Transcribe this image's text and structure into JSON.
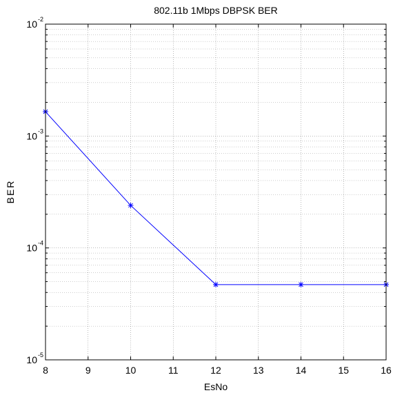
{
  "chart_data": {
    "type": "line",
    "title": "802.11b 1Mbps DBPSK BER",
    "xlabel": "EsNo",
    "ylabel": "BER",
    "yscale": "log",
    "xlim": [
      8,
      16
    ],
    "ylim": [
      1e-05,
      0.01
    ],
    "x_ticks": [
      "8",
      "9",
      "10",
      "11",
      "12",
      "13",
      "14",
      "15",
      "16"
    ],
    "y_ticks": [
      {
        "base": "10",
        "exp": "-5"
      },
      {
        "base": "10",
        "exp": "-4"
      },
      {
        "base": "10",
        "exp": "-3"
      },
      {
        "base": "10",
        "exp": "-2"
      }
    ],
    "grid": true,
    "series": [
      {
        "color": "#0000ff",
        "marker": "asterisk",
        "x": [
          8,
          10,
          12,
          14,
          16
        ],
        "y": [
          0.00165,
          0.00024,
          4.7e-05,
          4.7e-05,
          4.7e-05
        ]
      }
    ]
  }
}
